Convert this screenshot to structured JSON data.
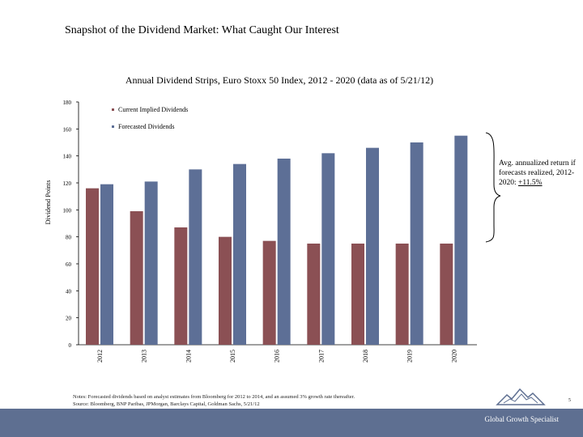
{
  "slide": {
    "title": "Snapshot of the Dividend Market: What Caught Our Interest",
    "page_number": "5",
    "footer": "Global Growth Specialist",
    "notes_line1": "Notes: Forecasted dividends based on analyst estimates from Bloomberg for 2012 to 2014, and an assumed 3% growth rate thereafter.",
    "notes_line2": "Source: Bloomberg, BNP Paribas, JPMorgan, Barclays Capital, Goldman Sachs, 5/21/12"
  },
  "annotation": {
    "text": "Avg. annualized return if forecasts realized, 2012-2020:",
    "return": "+11.5%"
  },
  "colors": {
    "current": "#8b5054",
    "forecast": "#5d6f96",
    "footer": "#5e6f91"
  },
  "chart_data": {
    "type": "bar",
    "title": "Annual Dividend Strips, Euro Stoxx 50 Index, 2012 - 2020 (data as of 5/21/12)",
    "xlabel": "",
    "ylabel": "Dividend Points",
    "categories": [
      "2012",
      "2013",
      "2014",
      "2015",
      "2016",
      "2017",
      "2018",
      "2019",
      "2020"
    ],
    "ylim": [
      0,
      180
    ],
    "yticks": [
      "0",
      "20",
      "40",
      "60",
      "80",
      "100",
      "120",
      "140",
      "160",
      "180"
    ],
    "legend_position": "top-left",
    "grid": false,
    "series": [
      {
        "name": "Current Implied Dividends",
        "values": [
          116,
          99,
          87,
          80,
          77,
          75,
          75,
          75,
          75
        ]
      },
      {
        "name": "Forecasted Dividends",
        "values": [
          119,
          121,
          130,
          134,
          138,
          142,
          146,
          150,
          155
        ]
      }
    ]
  }
}
